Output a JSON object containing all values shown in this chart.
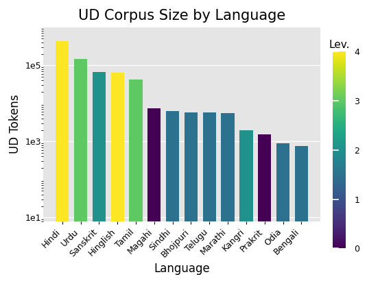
{
  "title": "UD Corpus Size by Language",
  "xlabel": "Language",
  "ylabel": "UD Tokens",
  "languages": [
    "Hindi",
    "Urdu",
    "Sanskrit",
    "Hinglish",
    "Tamil",
    "Magahi",
    "Sindhi",
    "Bhojpuri",
    "Telugu",
    "Marathi",
    "Kangri",
    "Prakrit",
    "Odia",
    "Bengali"
  ],
  "values": [
    430000,
    150000,
    68000,
    65000,
    42000,
    7500,
    6200,
    5800,
    5700,
    5600,
    2000,
    1550,
    880,
    760
  ],
  "lev_values": [
    4,
    3,
    2,
    4,
    3,
    0,
    1.5,
    1.5,
    1.5,
    1.5,
    2,
    0,
    1.5,
    1.5
  ],
  "colormap": "viridis",
  "lev_min": 0,
  "lev_max": 4,
  "colorbar_label": "Lev.",
  "background_color": "#e5e5e5",
  "grid_color": "white",
  "title_fontsize": 15,
  "axis_label_fontsize": 12,
  "tick_fontsize": 9,
  "colorbar_tick_fontsize": 9,
  "bar_width": 0.72,
  "ylim_min": 8,
  "ylim_max": 1000000
}
